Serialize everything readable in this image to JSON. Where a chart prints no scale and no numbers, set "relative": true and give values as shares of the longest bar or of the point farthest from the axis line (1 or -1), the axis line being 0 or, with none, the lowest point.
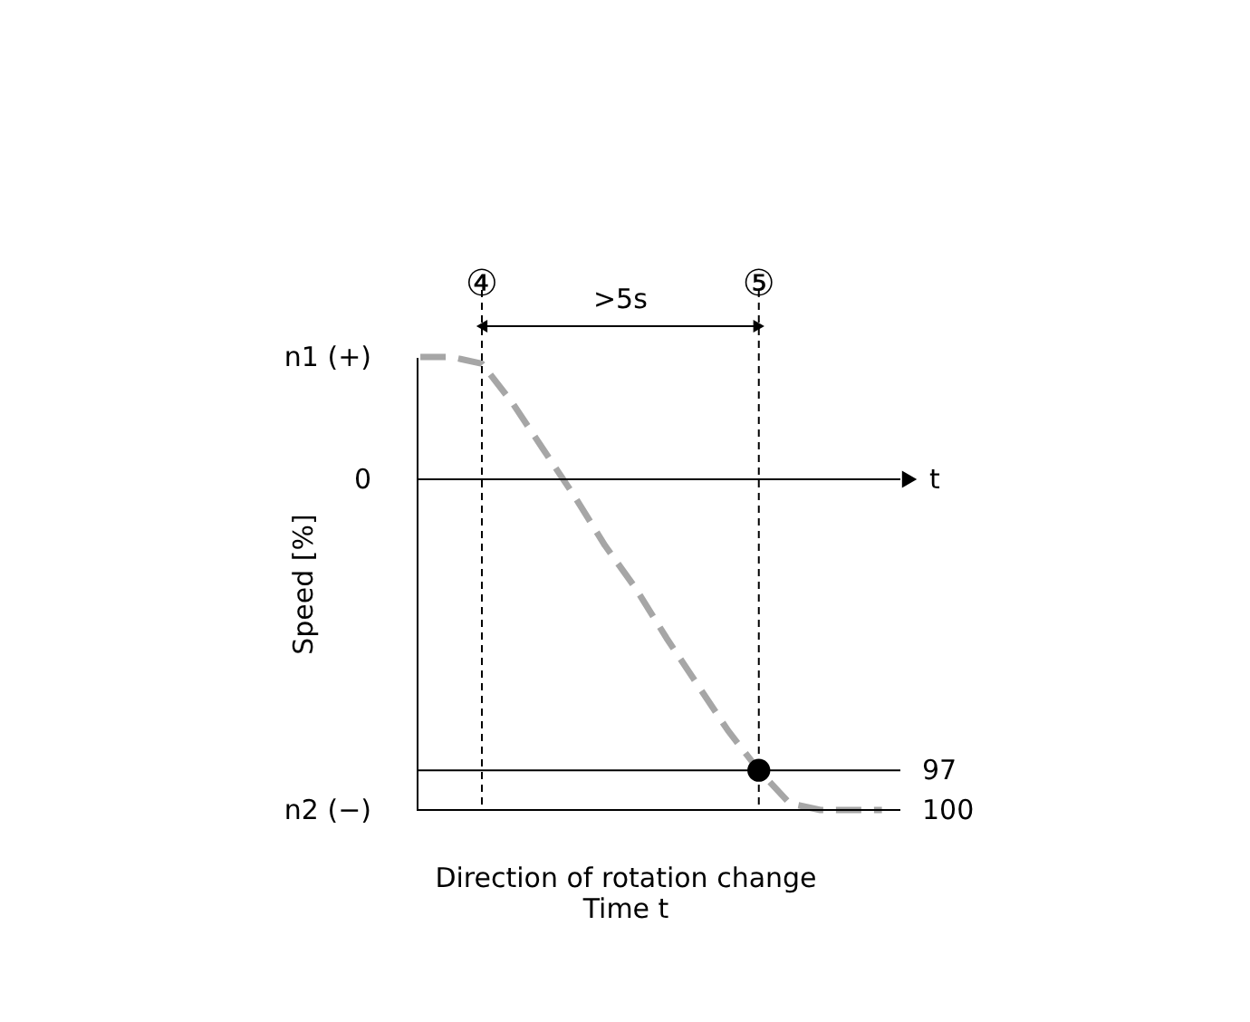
{
  "chart_data": {
    "type": "line",
    "relative": true,
    "xlabel": "Direction of rotation change\nTime t",
    "ylabel": "Speed [%]",
    "categories": [
      null,
      null,
      null,
      null,
      null,
      null,
      null,
      null,
      null,
      null,
      null,
      null,
      null,
      null,
      null,
      null
    ],
    "series": [
      {
        "color": "#a6a6a6",
        "line_style": "dashed",
        "values": [
          0.37,
          0.37,
          0.35,
          0.23,
          0.09,
          -0.05,
          -0.2,
          -0.33,
          -0.48,
          -0.62,
          -0.76,
          -0.88,
          -0.98,
          -1,
          -1,
          -1
        ]
      }
    ],
    "tick_labels": false,
    "ref_lines": [
      {
        "axis": "y",
        "value": 0,
        "color": "#000000"
      },
      {
        "axis": "y",
        "value": -0.88,
        "color": "#000000"
      },
      {
        "axis": "y",
        "value": -1,
        "color": "#000000"
      }
    ],
    "annotations": [
      ">5s",
      "④",
      "⑤",
      "t",
      "n1 (+)",
      "0",
      "n2 (−)",
      "97",
      "100"
    ]
  }
}
